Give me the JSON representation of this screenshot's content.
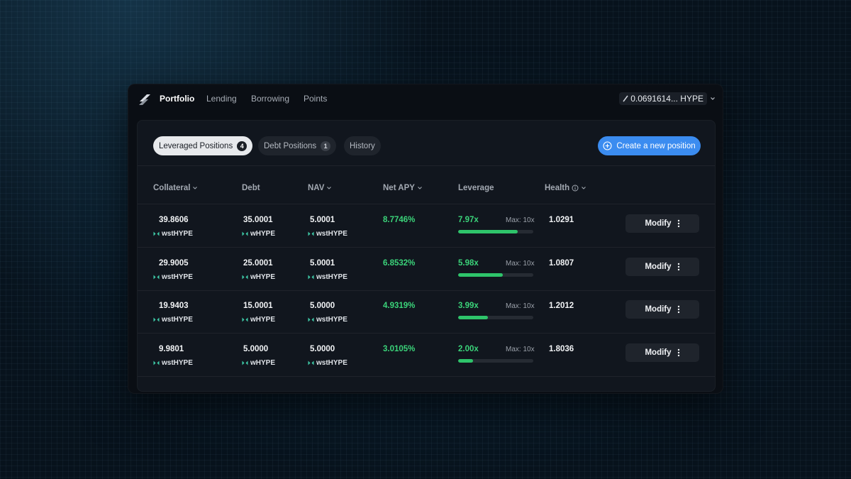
{
  "nav": {
    "items": [
      {
        "label": "Portfolio",
        "active": true
      },
      {
        "label": "Lending",
        "active": false
      },
      {
        "label": "Borrowing",
        "active": false
      },
      {
        "label": "Points",
        "active": false
      }
    ],
    "wallet": {
      "balance": "0.0691614... HYPE"
    }
  },
  "tabs": [
    {
      "label": "Leveraged Positions",
      "badge": "4",
      "active": true
    },
    {
      "label": "Debt Positions",
      "badge": "1",
      "active": false
    },
    {
      "label": "History",
      "badge": "",
      "active": false
    }
  ],
  "create_button": {
    "label": "Create a new position"
  },
  "columns": [
    "Collateral",
    "Debt",
    "NAV",
    "Net APY",
    "Leverage",
    "Health"
  ],
  "rows": [
    {
      "collateral": "39.8606",
      "collateral_token": "wstHYPE",
      "debt": "35.0001",
      "debt_token": "wHYPE",
      "nav": "5.0001",
      "nav_token": "wstHYPE",
      "net_apy": "8.7746%",
      "leverage": "7.97x",
      "leverage_value": 7.97,
      "max": "Max: 10x",
      "health": "1.0291",
      "action": "Modify"
    },
    {
      "collateral": "29.9005",
      "collateral_token": "wstHYPE",
      "debt": "25.0001",
      "debt_token": "wHYPE",
      "nav": "5.0001",
      "nav_token": "wstHYPE",
      "net_apy": "6.8532%",
      "leverage": "5.98x",
      "leverage_value": 5.98,
      "max": "Max: 10x",
      "health": "1.0807",
      "action": "Modify"
    },
    {
      "collateral": "19.9403",
      "collateral_token": "wstHYPE",
      "debt": "15.0001",
      "debt_token": "wHYPE",
      "nav": "5.0000",
      "nav_token": "wstHYPE",
      "net_apy": "4.9319%",
      "leverage": "3.99x",
      "leverage_value": 3.99,
      "max": "Max: 10x",
      "health": "1.2012",
      "action": "Modify"
    },
    {
      "collateral": "9.9801",
      "collateral_token": "wstHYPE",
      "debt": "5.0000",
      "debt_token": "wHYPE",
      "nav": "5.0000",
      "nav_token": "wstHYPE",
      "net_apy": "3.0105%",
      "leverage": "2.00x",
      "leverage_value": 2.0,
      "max": "Max: 10x",
      "health": "1.8036",
      "action": "Modify"
    }
  ],
  "leverage_max": 10,
  "colors": {
    "accent": "#3b8cf0",
    "positive": "#3bd47a",
    "bar": "#2ec46a",
    "token_icon": "#3ec9a7"
  }
}
